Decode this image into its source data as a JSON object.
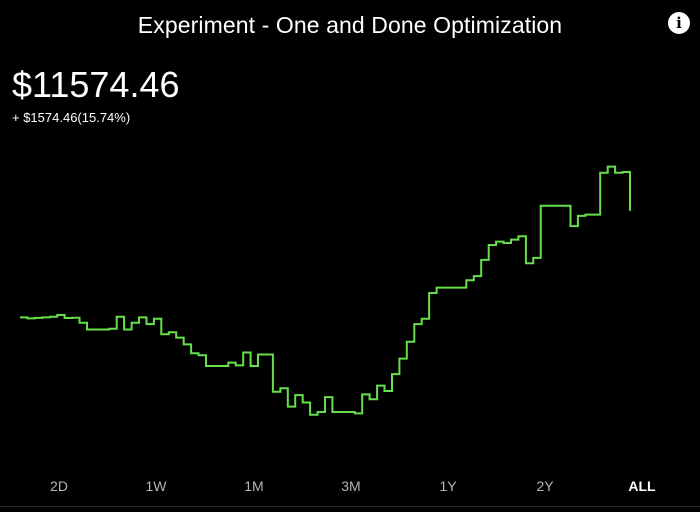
{
  "header": {
    "title": "Experiment - One and Done Optimization",
    "info_icon": "info-icon",
    "info_glyph": "i"
  },
  "portfolio": {
    "value": "$11574.46",
    "change": "+ $1574.46(15.74%)"
  },
  "colors": {
    "line": "#66e04a",
    "background": "#000000",
    "text": "#ffffff"
  },
  "ranges": [
    {
      "label": "2D",
      "active": false
    },
    {
      "label": "1W",
      "active": false
    },
    {
      "label": "1M",
      "active": false
    },
    {
      "label": "3M",
      "active": false
    },
    {
      "label": "1Y",
      "active": false
    },
    {
      "label": "2Y",
      "active": false
    },
    {
      "label": "ALL",
      "active": true
    }
  ],
  "chart_data": {
    "type": "line",
    "series": [
      {
        "values": [
          10000,
          9985,
          9992,
          10000,
          10010,
          10035,
          9990,
          9995,
          9920,
          9820,
          9820,
          9820,
          9830,
          10010,
          9820,
          9920,
          10000,
          9900,
          9980,
          9750,
          9780,
          9700,
          9600,
          9470,
          9440,
          9280,
          9280,
          9280,
          9330,
          9290,
          9480,
          9280,
          9450,
          9450,
          8900,
          8950,
          8680,
          8850,
          8740,
          8560,
          8600,
          8820,
          8600,
          8600,
          8600,
          8580,
          8860,
          8790,
          8990,
          8910,
          9160,
          9390,
          9640,
          9900,
          9980,
          10360,
          10440,
          10440,
          10440,
          10440,
          10550,
          10610,
          10850,
          11070,
          11120,
          11100,
          11150,
          11200,
          10800,
          10880,
          11650,
          11650,
          11650,
          11650,
          11350,
          11500,
          11520,
          11520,
          12140,
          12230,
          12140,
          12150,
          11574.46
        ]
      }
    ]
  }
}
